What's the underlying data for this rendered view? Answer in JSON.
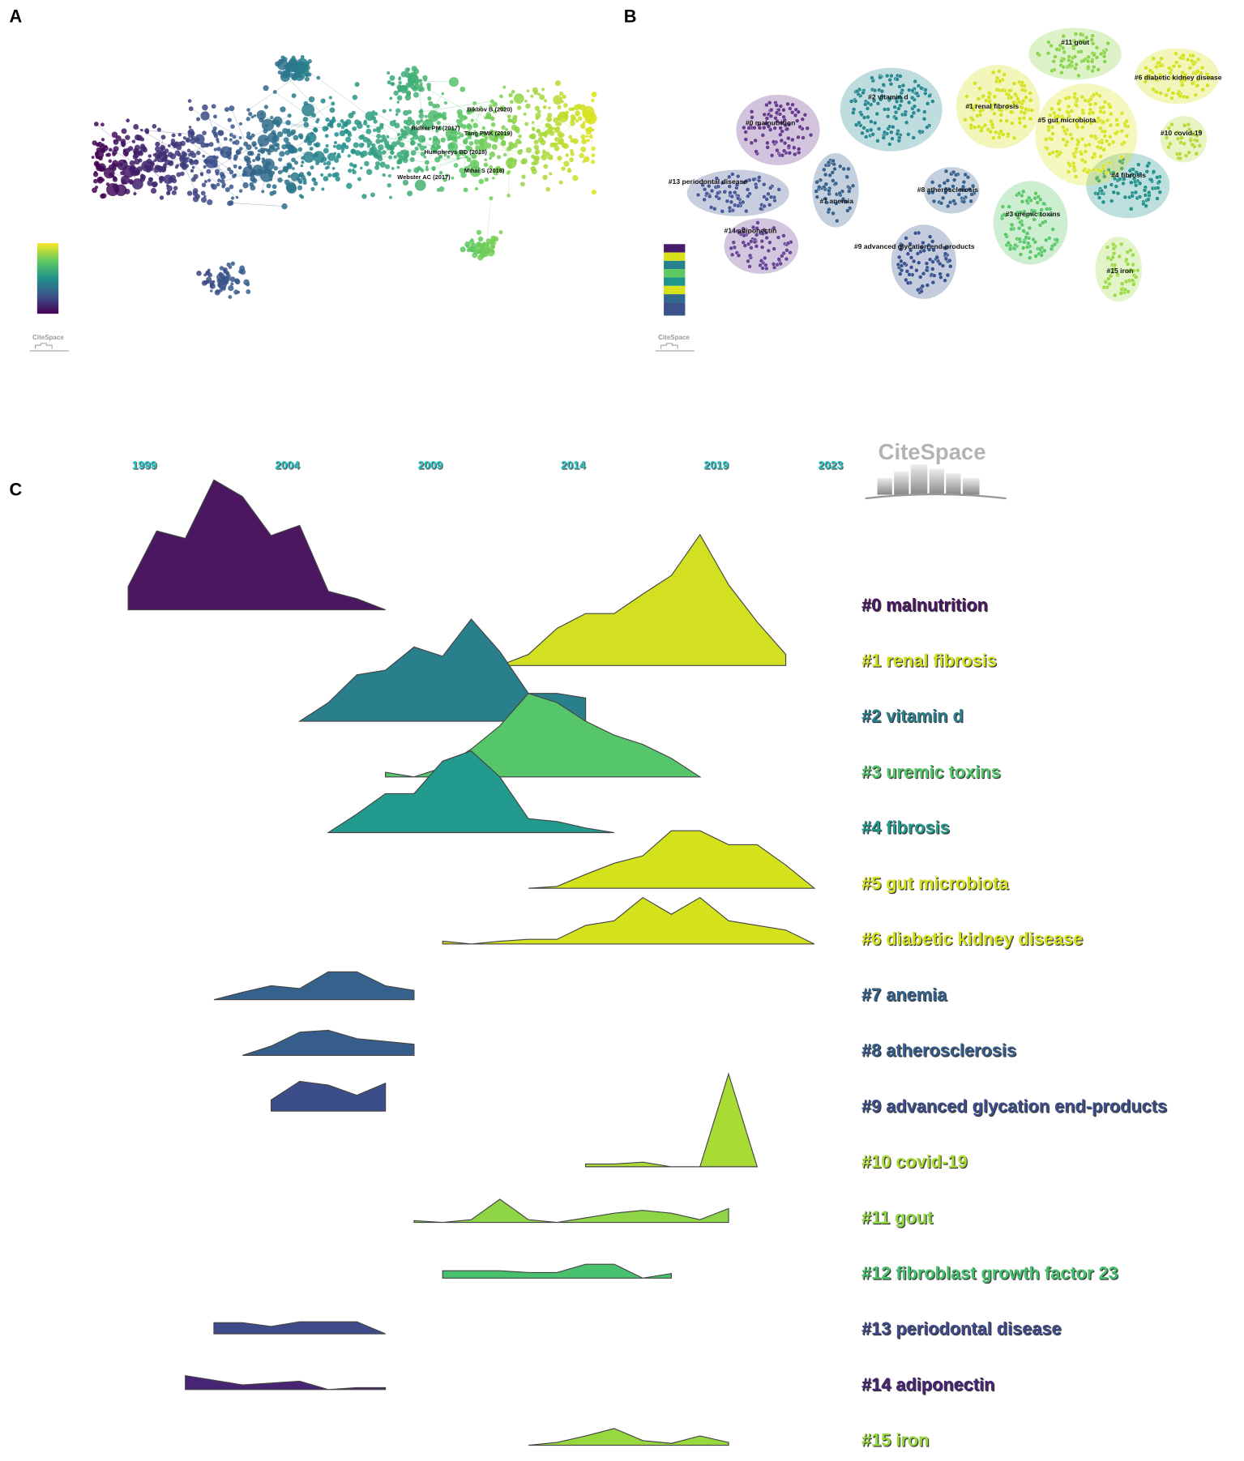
{
  "panels": [
    {
      "letter": "A",
      "labels": [
        "Bikbov B (2020)",
        "Ridker PM (2017)",
        "Tang PMK (2019)",
        "Humphreys BD (2018)",
        "Webster AC (2017)",
        "Mihai S (2018)"
      ]
    },
    {
      "letter": "B",
      "labels": [
        "#0 malnutrition",
        "#1 renal fibrosis",
        "#2 vitamin d",
        "#3 uremic toxins",
        "#4 fibrosis",
        "#5 gut microbiota",
        "#6 diabetic kidney disease",
        "#7 anemia",
        "#8 atherosclerosis",
        "#9 advanced glycation end-products",
        "#10 covid-19",
        "#11 gout",
        "#13 periodontal disease",
        "#14 adiponectin",
        "#15 iron"
      ]
    }
  ],
  "logo": "CiteSpace",
  "chart_data": {
    "type": "ridgeline",
    "letter": "C",
    "xlim": [
      1998,
      2023
    ],
    "xticks": [
      1999,
      2004,
      2009,
      2014,
      2019,
      2023
    ],
    "series": [
      {
        "name": "#0 malnutrition",
        "color": "#4a1760",
        "x": [
          1998,
          1999,
          2000,
          2001,
          2002,
          2003,
          2004,
          2005,
          2006,
          2007
        ],
        "values": [
          25,
          85,
          77,
          140,
          122,
          80,
          91,
          20,
          12,
          0
        ]
      },
      {
        "name": "#1 renal fibrosis",
        "color": "#d2e021",
        "x": [
          2011,
          2012,
          2013,
          2014,
          2015,
          2016,
          2017,
          2018,
          2019,
          2020,
          2021
        ],
        "values": [
          0,
          12,
          40,
          56,
          56,
          77,
          97,
          141,
          87,
          47,
          12
        ]
      },
      {
        "name": "#2 vitamin d",
        "color": "#2a7f8c",
        "x": [
          2004,
          2005,
          2006,
          2007,
          2008,
          2009,
          2010,
          2011,
          2012,
          2013,
          2014
        ],
        "values": [
          0,
          20,
          50,
          55,
          80,
          70,
          110,
          75,
          30,
          30,
          25
        ]
      },
      {
        "name": "#3 uremic toxins",
        "color": "#56c66b",
        "x": [
          2007,
          2008,
          2009,
          2010,
          2011,
          2012,
          2013,
          2014,
          2015,
          2016,
          2017,
          2018
        ],
        "values": [
          5,
          0,
          10,
          30,
          55,
          90,
          80,
          60,
          45,
          35,
          20,
          0
        ]
      },
      {
        "name": "#4 fibrosis",
        "color": "#239a8e",
        "x": [
          2005,
          2006,
          2007,
          2008,
          2009,
          2010,
          2011,
          2012,
          2013,
          2014,
          2015
        ],
        "values": [
          0,
          20,
          42,
          42,
          77,
          88,
          60,
          15,
          12,
          5,
          0
        ]
      },
      {
        "name": "#5 gut microbiota",
        "color": "#d4e21c",
        "x": [
          2012,
          2013,
          2014,
          2015,
          2016,
          2017,
          2018,
          2019,
          2020,
          2021,
          2022
        ],
        "values": [
          0,
          2,
          15,
          27,
          35,
          62,
          62,
          47,
          47,
          25,
          0
        ]
      },
      {
        "name": "#6 diabetic kidney disease",
        "color": "#d4e21c",
        "x": [
          2009,
          2010,
          2011,
          2012,
          2013,
          2014,
          2015,
          2016,
          2017,
          2018,
          2019,
          2020,
          2021,
          2022
        ],
        "values": [
          3,
          0,
          3,
          5,
          5,
          20,
          25,
          50,
          32,
          50,
          25,
          20,
          15,
          0
        ]
      },
      {
        "name": "#7 anemia",
        "color": "#34628c",
        "x": [
          2001,
          2002,
          2003,
          2004,
          2005,
          2006,
          2007,
          2008
        ],
        "values": [
          0,
          8,
          15,
          12,
          30,
          30,
          15,
          10
        ]
      },
      {
        "name": "#8 atherosclerosis",
        "color": "#375d8c",
        "x": [
          2002,
          2003,
          2004,
          2005,
          2006,
          2007,
          2008
        ],
        "values": [
          0,
          10,
          25,
          27,
          18,
          15,
          12
        ]
      },
      {
        "name": "#9 advanced glycation end-products",
        "color": "#3c4e8a",
        "x": [
          2003,
          2004,
          2005,
          2006,
          2007
        ],
        "values": [
          12,
          32,
          28,
          17,
          30
        ]
      },
      {
        "name": "#10 covid-19",
        "color": "#a8db34",
        "x": [
          2014,
          2015,
          2016,
          2017,
          2018,
          2019,
          2020
        ],
        "values": [
          3,
          3,
          5,
          0,
          0,
          100,
          0
        ]
      },
      {
        "name": "#11 gout",
        "color": "#8ed645",
        "x": [
          2008,
          2009,
          2010,
          2011,
          2012,
          2013,
          2014,
          2015,
          2016,
          2017,
          2018,
          2019
        ],
        "values": [
          2,
          0,
          3,
          25,
          3,
          0,
          5,
          10,
          13,
          10,
          3,
          15
        ]
      },
      {
        "name": "#12 fibroblast growth factor 23",
        "color": "#48c16e",
        "x": [
          2009,
          2010,
          2011,
          2012,
          2013,
          2014,
          2015,
          2016,
          2017
        ],
        "values": [
          8,
          8,
          8,
          6,
          6,
          15,
          15,
          0,
          5
        ]
      },
      {
        "name": "#13 periodontal disease",
        "color": "#3f4a8a",
        "x": [
          2001,
          2002,
          2003,
          2004,
          2005,
          2006,
          2007
        ],
        "values": [
          12,
          12,
          8,
          13,
          13,
          13,
          0
        ]
      },
      {
        "name": "#14 adiponectin",
        "color": "#482474",
        "x": [
          2000,
          2001,
          2002,
          2003,
          2004,
          2005,
          2006,
          2007
        ],
        "values": [
          15,
          10,
          5,
          7,
          9,
          0,
          2,
          2
        ]
      },
      {
        "name": "#15 iron",
        "color": "#97d83f",
        "x": [
          2012,
          2013,
          2014,
          2015,
          2016,
          2017,
          2018,
          2019
        ],
        "values": [
          0,
          3,
          10,
          18,
          5,
          2,
          10,
          3
        ]
      }
    ]
  }
}
